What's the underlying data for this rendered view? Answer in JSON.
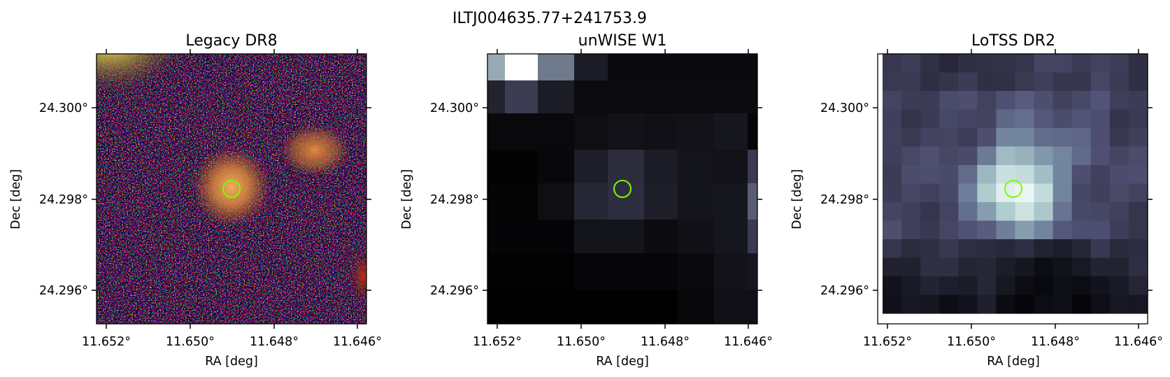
{
  "figure": {
    "suptitle": "ILTJ004635.77+241753.9"
  },
  "panels": [
    {
      "title": "Legacy DR8",
      "xlabel": "RA [deg]",
      "ylabel": "Dec [deg]",
      "xticks": [
        "11.652°",
        "11.650°",
        "11.648°",
        "11.646°"
      ],
      "yticks": [
        "24.300°",
        "24.298°",
        "24.296°"
      ],
      "image": "color optical cutout with a diffuse orange galaxy at center, a second orange source to the upper right, and a yellow source at the upper-left corner on a noisy red/green background",
      "marker_color": "#7cfc00"
    },
    {
      "title": "unWISE W1",
      "xlabel": "RA [deg]",
      "ylabel": "Dec [deg]",
      "xticks": [
        "11.652°",
        "11.650°",
        "11.648°",
        "11.646°"
      ],
      "yticks": [
        "24.300°",
        "24.298°",
        "24.296°"
      ],
      "image": "dark grayscale coarse-pixel infrared cutout with a bright pixel block at the top-left",
      "marker_color": "#7cfc00"
    },
    {
      "title": "LoTSS DR2",
      "xlabel": "RA [deg]",
      "ylabel": "Dec [deg]",
      "xticks": [
        "11.652°",
        "11.650°",
        "11.648°",
        "11.646°"
      ],
      "yticks": [
        "24.300°",
        "24.298°",
        "24.296°"
      ],
      "image": "bluish-gray radio map with a bright compact source at the center",
      "marker_color": "#7cfc00"
    }
  ]
}
